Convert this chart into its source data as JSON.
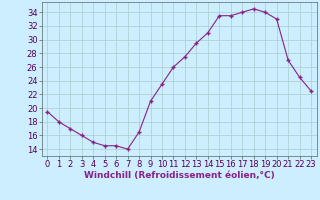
{
  "x": [
    0,
    1,
    2,
    3,
    4,
    5,
    6,
    7,
    8,
    9,
    10,
    11,
    12,
    13,
    14,
    15,
    16,
    17,
    18,
    19,
    20,
    21,
    22,
    23
  ],
  "y": [
    19.5,
    18,
    17,
    16,
    15,
    14.5,
    14.5,
    14,
    16.5,
    21,
    23.5,
    26,
    27.5,
    29.5,
    31,
    33.5,
    33.5,
    34,
    34.5,
    34,
    33,
    27,
    24.5,
    22.5
  ],
  "line_color": "#882288",
  "marker": "+",
  "background_color": "#cceeff",
  "grid_color": "#aacccc",
  "xlabel": "Windchill (Refroidissement éolien,°C)",
  "xlabel_fontsize": 6.5,
  "tick_fontsize": 6.0,
  "ylim": [
    13,
    35.5
  ],
  "yticks": [
    14,
    16,
    18,
    20,
    22,
    24,
    26,
    28,
    30,
    32,
    34
  ],
  "xticks": [
    0,
    1,
    2,
    3,
    4,
    5,
    6,
    7,
    8,
    9,
    10,
    11,
    12,
    13,
    14,
    15,
    16,
    17,
    18,
    19,
    20,
    21,
    22,
    23
  ]
}
